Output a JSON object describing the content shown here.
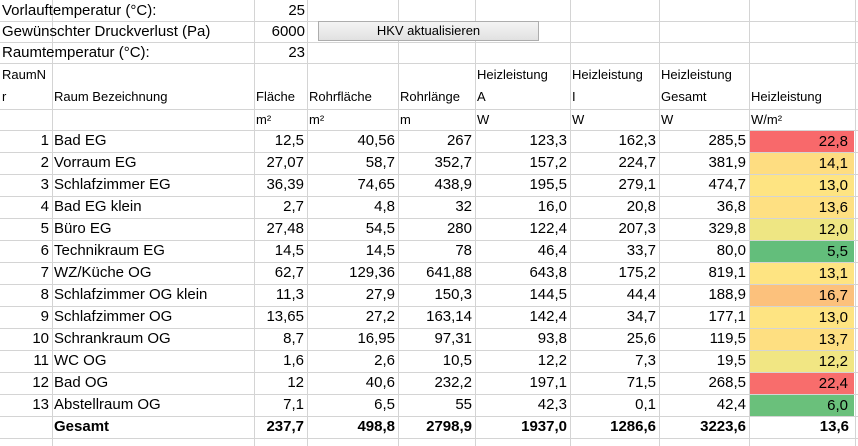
{
  "settings": [
    {
      "label": "Vorlauftemperatur (°C):",
      "value": "25"
    },
    {
      "label": "Gewünschter Druckverlust (Pa)",
      "value": "6000"
    },
    {
      "label": "Raumtemperatur (°C):",
      "value": "23"
    }
  ],
  "button_label": "HKV aktualisieren",
  "headers": {
    "raumnr_line1": "RaumN",
    "raumnr_line2": "r",
    "bezeichnung": "Raum Bezeichnung",
    "flaeche": "Fläche",
    "rohrflaeche": "Rohrfläche",
    "rohrlaenge": "Rohrlänge",
    "heizA_line1": "Heizleistung",
    "heizA_line2": "A",
    "heizI_line1": "Heizleistung",
    "heizI_line2": "I",
    "heizG_line1": "Heizleistung",
    "heizG_line2": "Gesamt",
    "heizqm": "Heizleistung"
  },
  "units": {
    "flaeche": "m²",
    "rohrflaeche": "m²",
    "rohrlaenge": "m",
    "heizA": "W",
    "heizI": "W",
    "heizG": "W",
    "heizqm": "W/m²"
  },
  "rows": [
    {
      "nr": "1",
      "name": "Bad EG",
      "flaeche": "12,5",
      "rohrflaeche": "40,56",
      "rohrlaenge": "267",
      "heizA": "123,3",
      "heizI": "162,3",
      "heizG": "285,5",
      "heizqm": "22,8",
      "color": "#f8696b"
    },
    {
      "nr": "2",
      "name": "Vorraum EG",
      "flaeche": "27,07",
      "rohrflaeche": "58,7",
      "rohrlaenge": "352,7",
      "heizA": "157,2",
      "heizI": "224,7",
      "heizG": "381,9",
      "heizqm": "14,1",
      "color": "#fedd81"
    },
    {
      "nr": "3",
      "name": "Schlafzimmer EG",
      "flaeche": "36,39",
      "rohrflaeche": "74,65",
      "rohrlaenge": "438,9",
      "heizA": "195,5",
      "heizI": "279,1",
      "heizG": "474,7",
      "heizqm": "13,0",
      "color": "#fee482"
    },
    {
      "nr": "4",
      "name": "Bad EG klein",
      "flaeche": "2,7",
      "rohrflaeche": "4,8",
      "rohrlaenge": "32",
      "heizA": "16,0",
      "heizI": "20,8",
      "heizG": "36,8",
      "heizqm": "13,6",
      "color": "#fee082"
    },
    {
      "nr": "5",
      "name": "Büro EG",
      "flaeche": "27,48",
      "rohrflaeche": "54,5",
      "rohrlaenge": "280",
      "heizA": "122,4",
      "heizI": "207,3",
      "heizG": "329,8",
      "heizqm": "12,0",
      "color": "#eee683"
    },
    {
      "nr": "6",
      "name": "Technikraum EG",
      "flaeche": "14,5",
      "rohrflaeche": "14,5",
      "rohrlaenge": "78",
      "heizA": "46,4",
      "heizI": "33,7",
      "heizG": "80,0",
      "heizqm": "5,5",
      "color": "#63be7b"
    },
    {
      "nr": "7",
      "name": "WZ/Küche OG",
      "flaeche": "62,7",
      "rohrflaeche": "129,36",
      "rohrlaenge": "641,88",
      "heizA": "643,8",
      "heizI": "175,2",
      "heizG": "819,1",
      "heizqm": "13,1",
      "color": "#fee482"
    },
    {
      "nr": "8",
      "name": "Schlafzimmer OG klein",
      "flaeche": "11,3",
      "rohrflaeche": "27,9",
      "rohrlaenge": "150,3",
      "heizA": "144,5",
      "heizI": "44,4",
      "heizG": "188,9",
      "heizqm": "16,7",
      "color": "#fcc17c"
    },
    {
      "nr": "9",
      "name": "Schlafzimmer OG",
      "flaeche": "13,65",
      "rohrflaeche": "27,2",
      "rohrlaenge": "163,14",
      "heizA": "142,4",
      "heizI": "34,7",
      "heizG": "177,1",
      "heizqm": "13,0",
      "color": "#fee482"
    },
    {
      "nr": "10",
      "name": "Schrankraum OG",
      "flaeche": "8,7",
      "rohrflaeche": "16,95",
      "rohrlaenge": "97,31",
      "heizA": "93,8",
      "heizI": "25,6",
      "heizG": "119,5",
      "heizqm": "13,7",
      "color": "#fedf81"
    },
    {
      "nr": "11",
      "name": "WC OG",
      "flaeche": "1,6",
      "rohrflaeche": "2,6",
      "rohrlaenge": "10,5",
      "heizA": "12,2",
      "heizI": "7,3",
      "heizG": "19,5",
      "heizqm": "12,2",
      "color": "#f1e683"
    },
    {
      "nr": "12",
      "name": "Bad OG",
      "flaeche": "12",
      "rohrflaeche": "40,6",
      "rohrlaenge": "232,2",
      "heizA": "197,1",
      "heizI": "71,5",
      "heizG": "268,5",
      "heizqm": "22,4",
      "color": "#f86d6c"
    },
    {
      "nr": "13",
      "name": "Abstellraum OG",
      "flaeche": "7,1",
      "rohrflaeche": "6,5",
      "rohrlaenge": "55",
      "heizA": "42,3",
      "heizI": "0,1",
      "heizG": "42,4",
      "heizqm": "6,0",
      "color": "#6ac07b"
    }
  ],
  "total": {
    "label": "Gesamt",
    "flaeche": "237,7",
    "rohrflaeche": "498,8",
    "rohrlaenge": "2798,9",
    "heizA": "1937,0",
    "heizI": "1286,6",
    "heizG": "3223,6",
    "heizqm": "13,6"
  }
}
